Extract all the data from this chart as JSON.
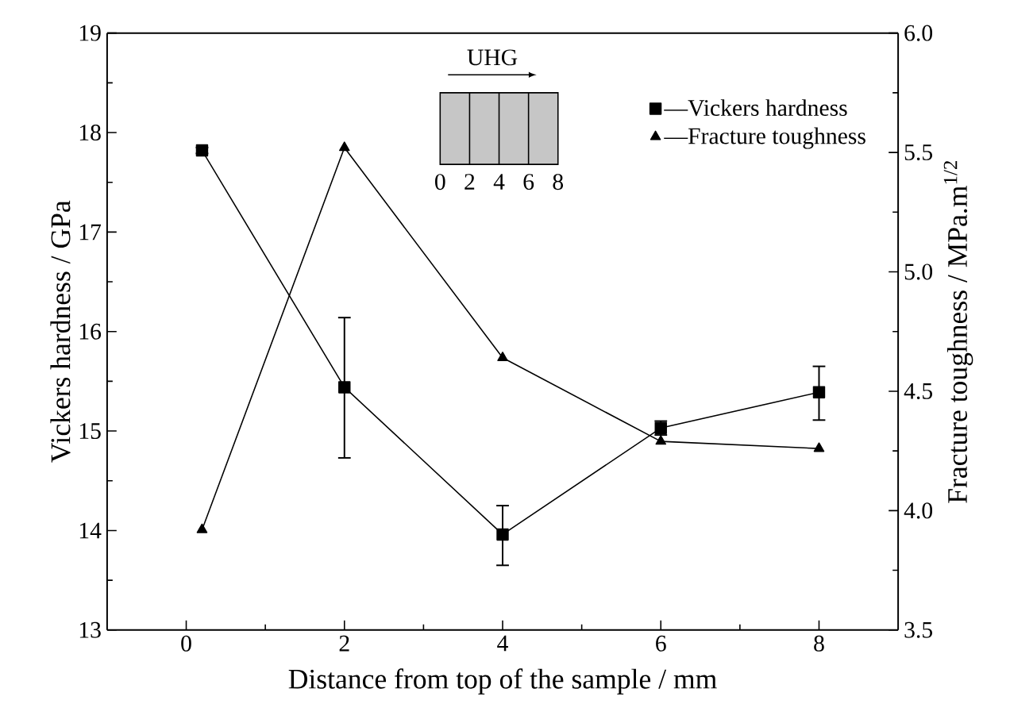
{
  "chart_data": {
    "type": "line",
    "xlabel": "Distance from top of the sample / mm",
    "ylabel": "Vickers hardness / GPa",
    "y2label": "Fracture toughness / MPa.m$^{1/2}$",
    "x": [
      0.2,
      2,
      4,
      6,
      8
    ],
    "series": [
      {
        "name": "—Vickers hardness",
        "color": "#000000",
        "marker": "square",
        "values": [
          17.82,
          15.44,
          13.96,
          15.03,
          15.39
        ],
        "errors": [
          0.03,
          [
            14.73,
            16.14
          ],
          [
            13.65,
            14.25
          ],
          0.07,
          [
            15.11,
            15.65
          ]
        ]
      },
      {
        "name": "—Fracture toughness",
        "color": "#000000",
        "marker": "triangle",
        "axis": "y2",
        "values": [
          3.92,
          5.52,
          4.64,
          4.29,
          4.26
        ]
      }
    ],
    "xlim": [
      -1,
      9
    ],
    "xticks": [
      0,
      2,
      4,
      6,
      8
    ],
    "ylim": [
      13,
      19
    ],
    "yticks": [
      13,
      14,
      15,
      16,
      17,
      18,
      19
    ],
    "y2lim": [
      3.5,
      6.0
    ],
    "y2ticks": [
      {
        "value": 3.5,
        "label": "3.5"
      },
      {
        "value": 4.0,
        "label": "4.0"
      },
      {
        "value": 4.5,
        "label": "4.5"
      },
      {
        "value": 5.0,
        "label": "5.0"
      },
      {
        "value": 5.5,
        "label": "5.5"
      },
      {
        "value": 6.0,
        "label": "6.0"
      }
    ],
    "legend": "top right",
    "grid": false,
    "line_style": "solid",
    "annotations": [
      "UHG",
      "0",
      "2",
      "4",
      "6",
      "8"
    ]
  }
}
